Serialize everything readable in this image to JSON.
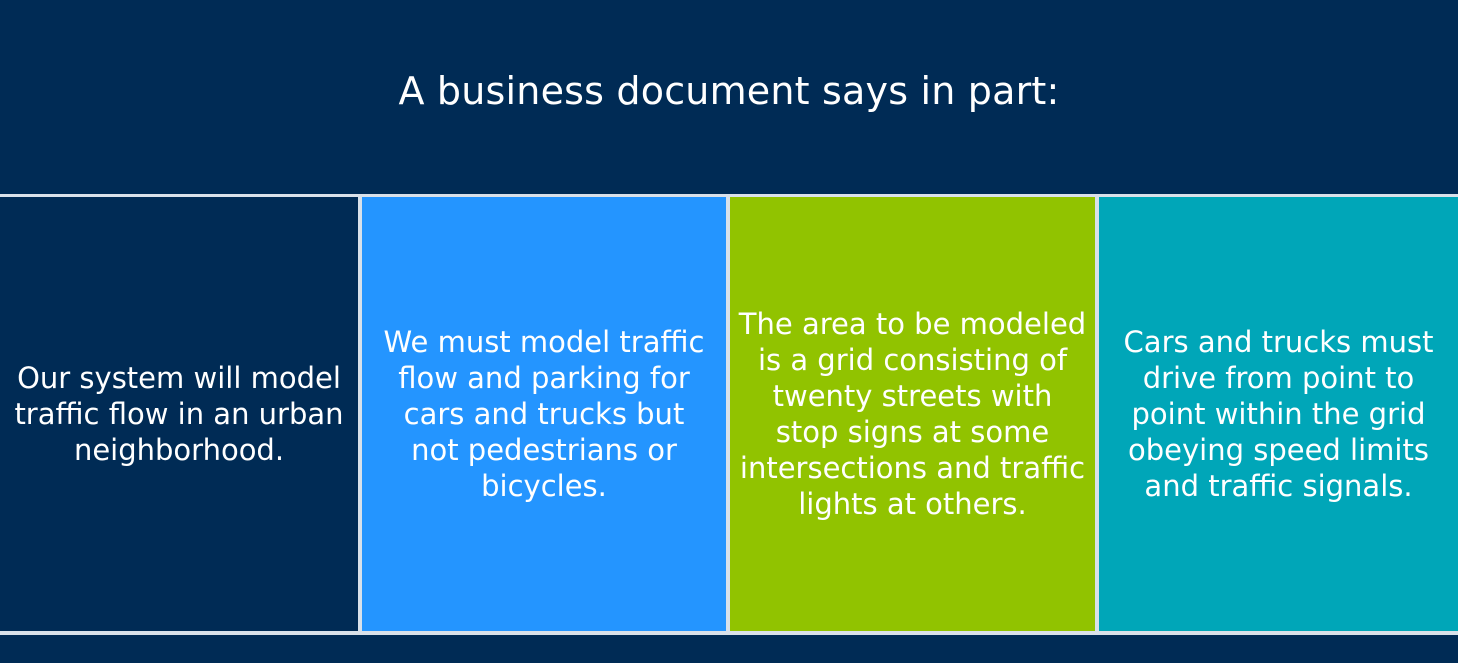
{
  "title": "A business document says in part:",
  "colors": {
    "background": "#002b55",
    "box1": "#002b55",
    "box2": "#2495ff",
    "box3": "#91c300",
    "box4": "#00a6b8",
    "divider": "#d9e1ea"
  },
  "boxes": [
    {
      "text": "Our system will model traffic flow in an urban neighborhood."
    },
    {
      "text": "We must model traffic flow and parking for cars and trucks but not pedestrians or bicycles."
    },
    {
      "text": "The area to be modeled is a grid consisting of twenty streets with stop signs at some intersections and traffic lights at others."
    },
    {
      "text": "Cars and trucks must drive from point to point within the grid obeying speed limits and traffic signals."
    }
  ]
}
